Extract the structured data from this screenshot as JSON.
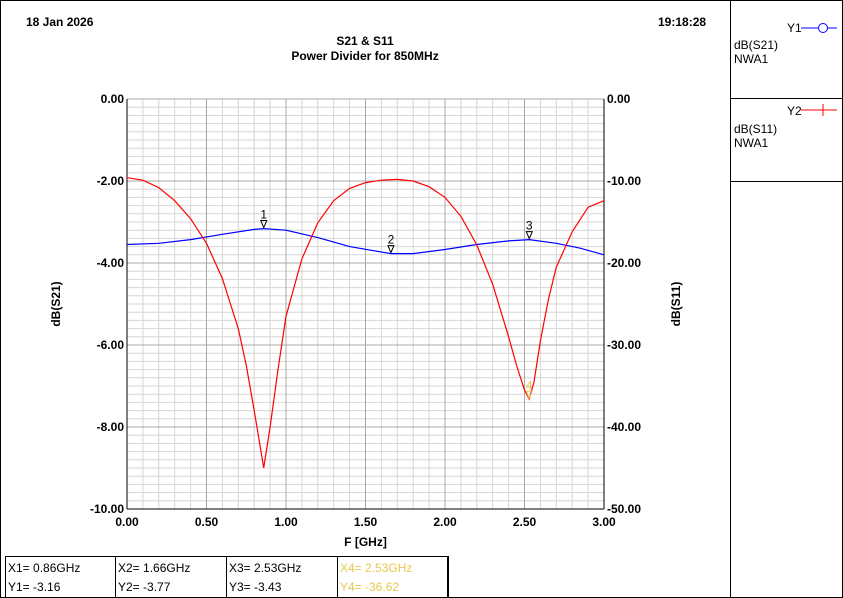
{
  "header": {
    "date": "18 Jan 2026",
    "time": "19:18:28",
    "title": "S21 & S11",
    "subtitle": "Power Divider for 850MHz"
  },
  "legend": [
    {
      "tag": "Y1",
      "lines": [
        "dB(S21)",
        "NWA1"
      ],
      "color": "#0000ff",
      "marker": "circle"
    },
    {
      "tag": "Y2",
      "lines": [
        "dB(S11)",
        "NWA1"
      ],
      "color": "#ff0000",
      "marker": "plus"
    }
  ],
  "chart_data": {
    "type": "line",
    "xlabel": "F [GHz]",
    "ylabel": "dB(S21)",
    "y2label": "dB(S11)",
    "xlim": [
      0.0,
      3.0
    ],
    "ylim": [
      -10.0,
      0.0
    ],
    "y2lim": [
      -50.0,
      0.0
    ],
    "x_ticks": [
      "0.00",
      "0.50",
      "1.00",
      "1.50",
      "2.00",
      "2.50",
      "3.00"
    ],
    "y_ticks": [
      "0.00",
      "-2.00",
      "-4.00",
      "-6.00",
      "-8.00",
      "-10.00"
    ],
    "y2_ticks": [
      "0.00",
      "-10.00",
      "-20.00",
      "-30.00",
      "-40.00",
      "-50.00"
    ],
    "grid": true,
    "series": [
      {
        "name": "dB(S21)",
        "axis": "left",
        "color": "#0000ff",
        "x": [
          0.0,
          0.2,
          0.4,
          0.6,
          0.8,
          0.86,
          1.0,
          1.2,
          1.4,
          1.66,
          1.8,
          2.0,
          2.2,
          2.4,
          2.53,
          2.7,
          2.85,
          3.0
        ],
        "y": [
          -3.55,
          -3.52,
          -3.43,
          -3.3,
          -3.18,
          -3.16,
          -3.2,
          -3.38,
          -3.6,
          -3.77,
          -3.77,
          -3.67,
          -3.55,
          -3.46,
          -3.43,
          -3.52,
          -3.64,
          -3.8
        ]
      },
      {
        "name": "dB(S11)",
        "axis": "right",
        "color": "#ff0000",
        "x": [
          0.0,
          0.1,
          0.2,
          0.3,
          0.4,
          0.5,
          0.6,
          0.7,
          0.75,
          0.8,
          0.83,
          0.86,
          0.9,
          0.95,
          1.0,
          1.1,
          1.2,
          1.3,
          1.4,
          1.5,
          1.6,
          1.7,
          1.8,
          1.9,
          2.0,
          2.1,
          2.2,
          2.3,
          2.4,
          2.45,
          2.5,
          2.53,
          2.56,
          2.6,
          2.65,
          2.7,
          2.8,
          2.9,
          3.0
        ],
        "y": [
          -9.6,
          -9.9,
          -10.8,
          -12.4,
          -14.6,
          -17.6,
          -21.9,
          -28.0,
          -32.5,
          -38.0,
          -41.5,
          -45.0,
          -40.0,
          -33.0,
          -26.5,
          -19.5,
          -15.1,
          -12.4,
          -10.9,
          -10.2,
          -9.9,
          -9.8,
          -10.0,
          -10.7,
          -12.0,
          -14.3,
          -17.8,
          -22.6,
          -29.0,
          -32.5,
          -35.5,
          -36.6,
          -34.5,
          -29.5,
          -24.5,
          -20.5,
          -16.2,
          -13.2,
          -12.4
        ]
      }
    ],
    "markers": [
      {
        "label": "1",
        "x": 0.86,
        "y": -3.16,
        "series": "dB(S21)"
      },
      {
        "label": "2",
        "x": 1.66,
        "y": -3.77,
        "series": "dB(S21)"
      },
      {
        "label": "3",
        "x": 2.53,
        "y": -3.43,
        "series": "dB(S21)"
      },
      {
        "label": "4",
        "x": 2.53,
        "y": -36.62,
        "series": "dB(S11)"
      }
    ]
  },
  "readout": [
    {
      "x": "X1= 0.86GHz",
      "y": "Y1= -3.16",
      "color": "#000000"
    },
    {
      "x": "X2= 1.66GHz",
      "y": "Y2= -3.77",
      "color": "#000000"
    },
    {
      "x": "X3= 2.53GHz",
      "y": "Y3= -3.43",
      "color": "#000000"
    },
    {
      "x": "X4= 2.53GHz",
      "y": "Y4= -36.62",
      "color": "#e8c84a"
    }
  ]
}
